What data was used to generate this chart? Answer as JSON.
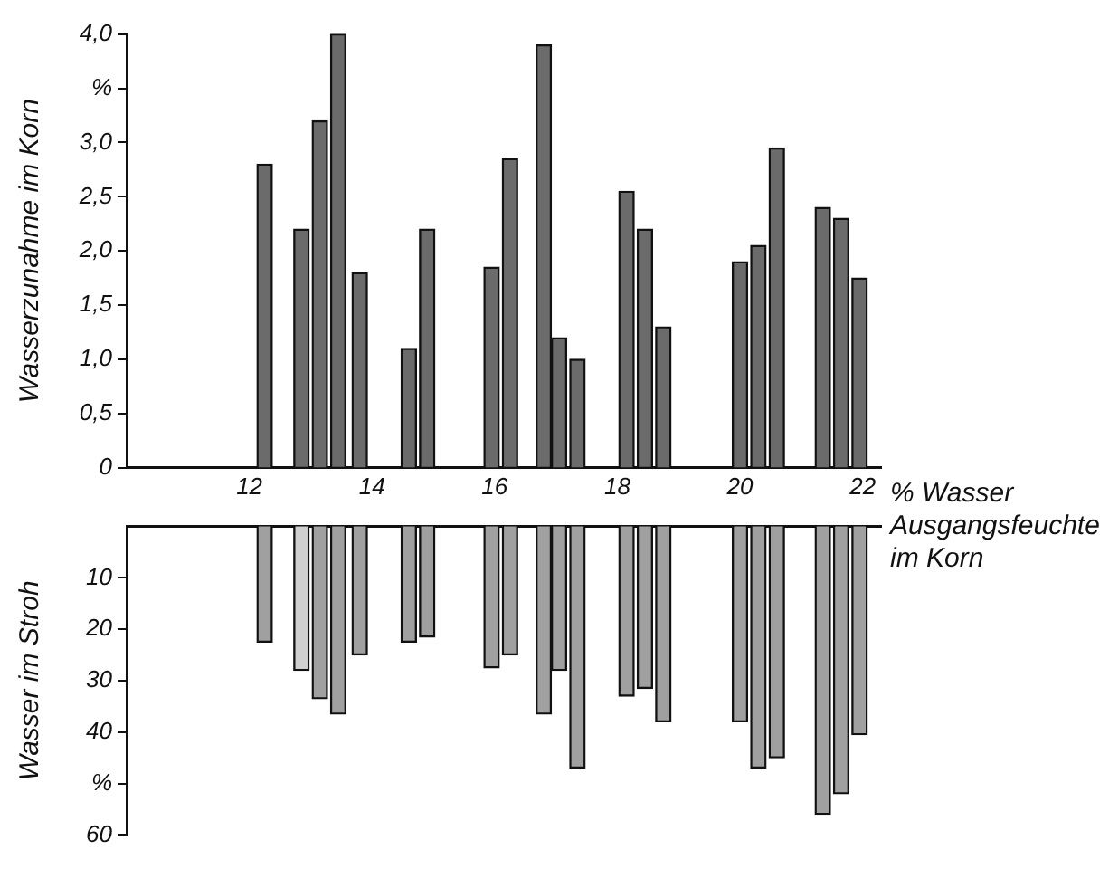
{
  "chart_data": [
    {
      "type": "bar",
      "ylabel": "Wasserzunahme im Korn",
      "xlabel": "% Wasser Ausgangsfeuchte im Korn",
      "x": [
        12.25,
        12.85,
        13.15,
        13.45,
        13.8,
        14.6,
        14.9,
        15.95,
        16.25,
        16.8,
        17.05,
        17.35,
        18.15,
        18.45,
        18.75,
        20.0,
        20.3,
        20.6,
        21.35,
        21.65,
        21.95
      ],
      "values": [
        2.8,
        2.2,
        3.2,
        4.0,
        1.8,
        1.1,
        2.2,
        1.85,
        2.85,
        3.9,
        1.2,
        1.0,
        2.55,
        2.2,
        1.3,
        1.9,
        2.05,
        2.95,
        2.4,
        2.3,
        1.75
      ],
      "color": "#6b6b6b",
      "xlim": [
        10,
        22.3
      ],
      "xticks": [
        12,
        14,
        16,
        18,
        20,
        22
      ],
      "ylim": [
        0,
        4.0
      ],
      "yticks": [
        0,
        {
          "value": 0.5,
          "label": "0,5"
        },
        {
          "value": 1.0,
          "label": "1,0"
        },
        {
          "value": 1.5,
          "label": "1,5"
        },
        {
          "value": 2.0,
          "label": "2,0"
        },
        {
          "value": 2.5,
          "label": "2,5"
        },
        {
          "value": 3.0,
          "label": "3,0"
        },
        {
          "value": 3.5,
          "label": "%"
        },
        {
          "value": 4.0,
          "label": "4,0"
        }
      ],
      "grid": false,
      "legend": false
    },
    {
      "type": "bar",
      "ylabel": "Wasser im Stroh",
      "x": [
        12.25,
        12.85,
        13.15,
        13.45,
        13.8,
        14.6,
        14.9,
        15.95,
        16.25,
        16.8,
        17.05,
        17.35,
        18.15,
        18.45,
        18.75,
        20.0,
        20.3,
        20.6,
        21.35,
        21.65,
        21.95
      ],
      "values": [
        22.5,
        28,
        33.5,
        36.5,
        25,
        22.5,
        21.5,
        27.5,
        25,
        36.5,
        28,
        47,
        33,
        31.5,
        38,
        38,
        47,
        45,
        56,
        52,
        40.5
      ],
      "colors": [
        "#a0a0a0",
        "#cfcfcf",
        "#a0a0a0",
        "#a0a0a0",
        "#a0a0a0",
        "#a0a0a0",
        "#a0a0a0",
        "#a0a0a0",
        "#a0a0a0",
        "#a0a0a0",
        "#a0a0a0",
        "#a0a0a0",
        "#a0a0a0",
        "#a0a0a0",
        "#a0a0a0",
        "#a0a0a0",
        "#a0a0a0",
        "#a0a0a0",
        "#a0a0a0",
        "#a0a0a0",
        "#a0a0a0"
      ],
      "xlim": [
        10,
        22.3
      ],
      "ylim": [
        60,
        0
      ],
      "yticks": [
        10,
        20,
        30,
        40,
        {
          "value": 50,
          "label": "%"
        },
        60
      ],
      "tick_labels": "y",
      "grid": false,
      "legend": false
    }
  ]
}
